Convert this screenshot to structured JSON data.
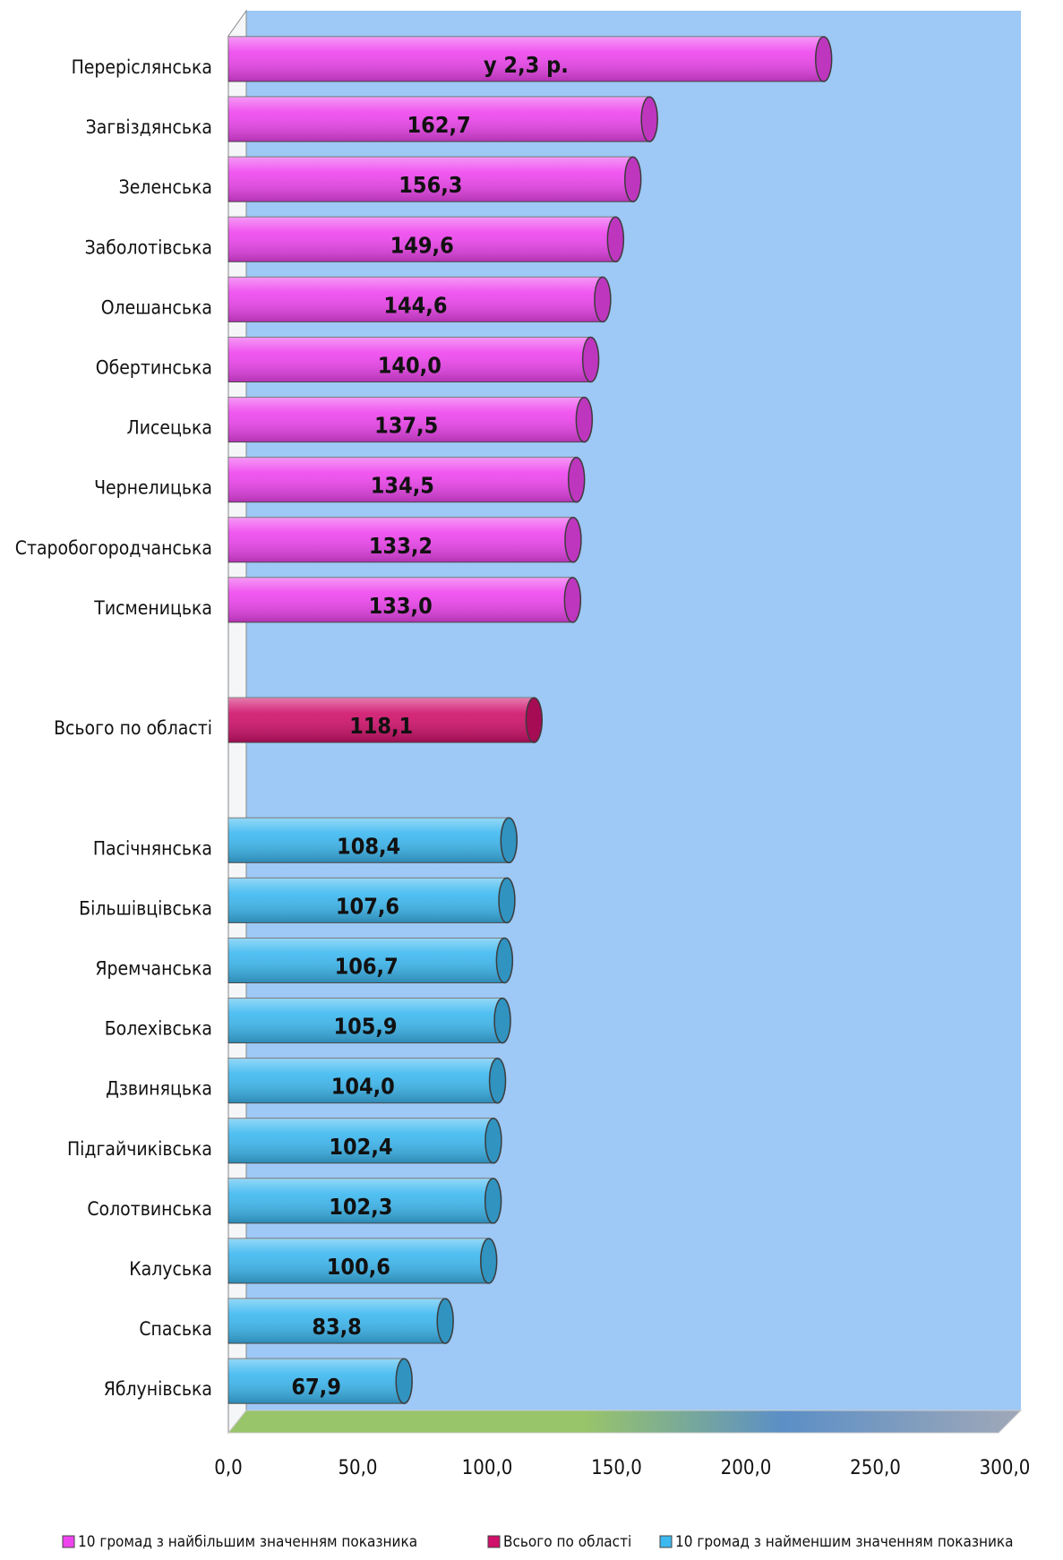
{
  "chart_data": {
    "type": "bar",
    "orientation": "horizontal",
    "categories": [
      "Переріслянська",
      "Загвіздянська",
      "Зеленська",
      "Заболотівська",
      "Олешанська",
      "Обертинська",
      "Лисецька",
      "Чернелицька",
      "Старобогородчанська",
      "Тисменицька",
      null,
      "Всього по області",
      null,
      "Пасічнянська",
      "Більшівцівська",
      "Яремчанська",
      "Болехівська",
      "Дзвиняцька",
      "Підгайчиківська",
      "Солотвинська",
      "Калуська",
      "Спаська",
      "Яблунівська"
    ],
    "series": [
      {
        "name": "10 громад з найбільшим значенням показника",
        "color": "#ee44ee",
        "values": [
          230,
          162.7,
          156.3,
          149.6,
          144.6,
          140.0,
          137.5,
          134.5,
          133.2,
          133.0,
          null,
          null,
          null,
          null,
          null,
          null,
          null,
          null,
          null,
          null,
          null,
          null,
          null
        ],
        "value_labels": [
          "у 2,3 р.",
          "162,7",
          "156,3",
          "149,6",
          "144,6",
          "140,0",
          "137,5",
          "134,5",
          "133,2",
          "133,0",
          null,
          null,
          null,
          null,
          null,
          null,
          null,
          null,
          null,
          null,
          null,
          null,
          null
        ]
      },
      {
        "name": "Всього по області",
        "color": "#d0106a",
        "values": [
          null,
          null,
          null,
          null,
          null,
          null,
          null,
          null,
          null,
          null,
          null,
          118.1,
          null,
          null,
          null,
          null,
          null,
          null,
          null,
          null,
          null,
          null,
          null
        ],
        "value_labels": [
          null,
          null,
          null,
          null,
          null,
          null,
          null,
          null,
          null,
          null,
          null,
          "118,1",
          null,
          null,
          null,
          null,
          null,
          null,
          null,
          null,
          null,
          null,
          null
        ]
      },
      {
        "name": "10 громад з найменшим значенням показника",
        "color": "#3cb8f0",
        "values": [
          null,
          null,
          null,
          null,
          null,
          null,
          null,
          null,
          null,
          null,
          null,
          null,
          null,
          108.4,
          107.6,
          106.7,
          105.9,
          104.0,
          102.4,
          102.3,
          100.6,
          83.8,
          67.9
        ],
        "value_labels": [
          null,
          null,
          null,
          null,
          null,
          null,
          null,
          null,
          null,
          null,
          null,
          null,
          null,
          "108,4",
          "107,6",
          "106,7",
          "105,9",
          "104,0",
          "102,4",
          "102,3",
          "100,6",
          "83,8",
          "67,9"
        ]
      }
    ],
    "xlim": [
      0,
      300
    ],
    "xticks": [
      {
        "value": 0,
        "label": "0,0"
      },
      {
        "value": 50,
        "label": "50,0"
      },
      {
        "value": 100,
        "label": "100,0"
      },
      {
        "value": 150,
        "label": "150,0"
      },
      {
        "value": 200,
        "label": "200,0"
      },
      {
        "value": 250,
        "label": "250,0"
      },
      {
        "value": 300,
        "label": "300,0"
      }
    ],
    "legend": "bottom"
  }
}
